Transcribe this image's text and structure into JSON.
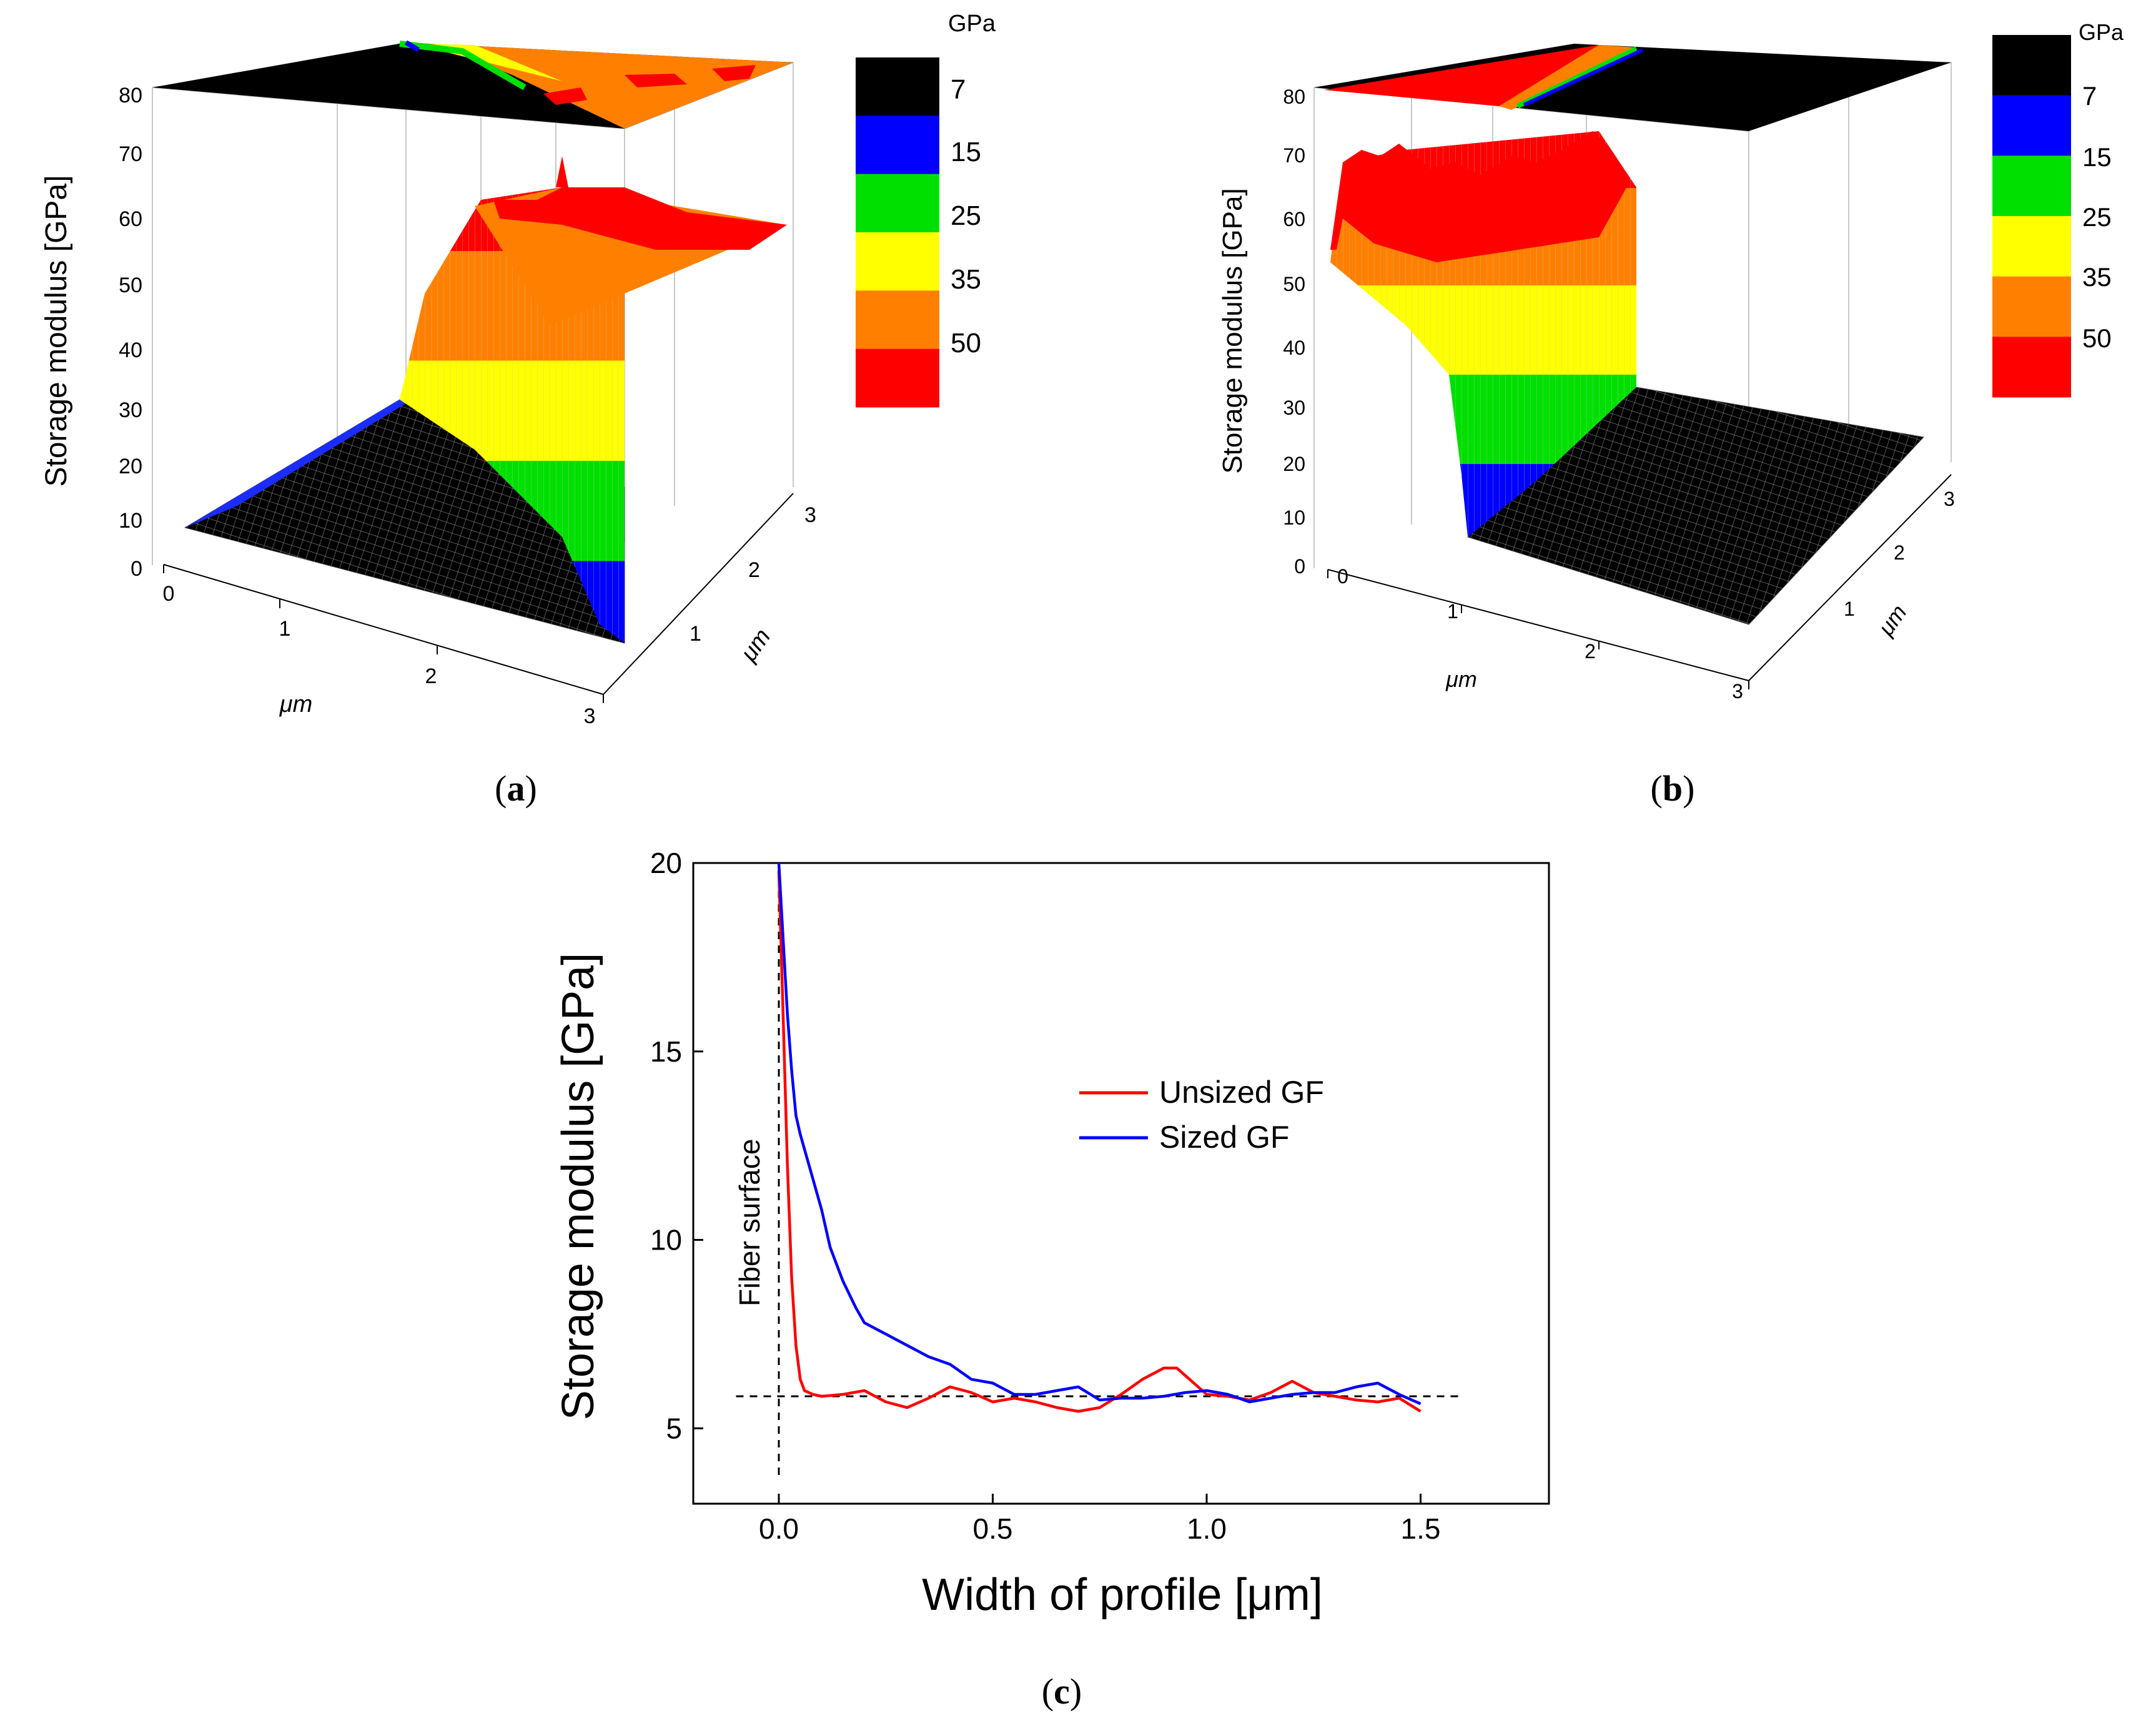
{
  "panels": {
    "a": {
      "label": "(a)",
      "letter": "a"
    },
    "b": {
      "label": "(b)",
      "letter": "b"
    },
    "c": {
      "label": "(c)",
      "letter": "c"
    }
  },
  "surface_common": {
    "zlabel": "Storage modulus [GPa]",
    "xlabel": "μm",
    "ylabel": "μm",
    "zticks": [
      "0",
      "10",
      "20",
      "30",
      "40",
      "50",
      "60",
      "70",
      "80"
    ],
    "xticks": [
      "0",
      "1",
      "2",
      "3"
    ],
    "yticks": [
      "1",
      "2",
      "3"
    ],
    "colorbar": {
      "unit": "GPa",
      "ticks": [
        "7",
        "15",
        "25",
        "35",
        "50"
      ],
      "colors": [
        "#000000",
        "#0000ff",
        "#00e000",
        "#ffff00",
        "#ff8000",
        "#ff0000"
      ]
    }
  },
  "chart_data": [
    {
      "type": "surface",
      "panel": "a",
      "zlabel": "Storage modulus [GPa]",
      "xlabel": "μm",
      "ylabel": "μm",
      "xlim": [
        0,
        3
      ],
      "ylim": [
        0,
        3
      ],
      "zlim": [
        0,
        80
      ],
      "profile_x": [
        0,
        0.5,
        1.0,
        1.5,
        2.0,
        2.5,
        3.0
      ],
      "profile_modulus_gpa": [
        7,
        6,
        6,
        8,
        45,
        55,
        58
      ]
    },
    {
      "type": "surface",
      "panel": "b",
      "zlabel": "Storage modulus [GPa]",
      "xlabel": "μm",
      "ylabel": "μm",
      "xlim": [
        0,
        3
      ],
      "ylim": [
        0,
        3
      ],
      "zlim": [
        0,
        80
      ],
      "profile_x": [
        0,
        0.5,
        1.0,
        1.5,
        2.0,
        2.5,
        3.0
      ],
      "profile_modulus_gpa": [
        58,
        65,
        12,
        6,
        6,
        6,
        6
      ]
    },
    {
      "type": "line",
      "panel": "c",
      "xlabel": "Width of profile [μm]",
      "ylabel": "Storage modulus [GPa]",
      "xlim": [
        -0.2,
        1.8
      ],
      "ylim": [
        3,
        20
      ],
      "xticks": [
        "0.0",
        "0.5",
        "1.0",
        "1.5"
      ],
      "xtick_values": [
        0,
        0.5,
        1.0,
        1.5
      ],
      "yticks": [
        "5",
        "10",
        "15",
        "20"
      ],
      "ytick_values": [
        5,
        10,
        15,
        20
      ],
      "annotation": "Fiber surface",
      "reference_lines": {
        "vertical_x": 0,
        "horizontal_y": 5.85,
        "horizontal_from": -0.1,
        "horizontal_to": 1.6
      },
      "series": [
        {
          "name": "Unsized GF",
          "color": "#ff0000",
          "x": [
            0.0,
            0.01,
            0.02,
            0.03,
            0.04,
            0.05,
            0.06,
            0.08,
            0.1,
            0.15,
            0.2,
            0.25,
            0.3,
            0.35,
            0.4,
            0.45,
            0.5,
            0.55,
            0.6,
            0.65,
            0.7,
            0.75,
            0.8,
            0.85,
            0.9,
            0.93,
            0.95,
            1.0,
            1.05,
            1.1,
            1.15,
            1.2,
            1.25,
            1.3,
            1.35,
            1.4,
            1.45,
            1.5
          ],
          "y": [
            19.8,
            16.0,
            12.0,
            9.0,
            7.2,
            6.3,
            6.0,
            5.9,
            5.85,
            5.9,
            6.0,
            5.7,
            5.55,
            5.8,
            6.1,
            5.95,
            5.7,
            5.8,
            5.7,
            5.55,
            5.45,
            5.55,
            5.9,
            6.3,
            6.6,
            6.6,
            6.4,
            5.9,
            5.85,
            5.75,
            5.95,
            6.25,
            5.95,
            5.85,
            5.75,
            5.7,
            5.8,
            5.45
          ]
        },
        {
          "name": "Sized GF",
          "color": "#0000ff",
          "x": [
            0.0,
            0.01,
            0.02,
            0.03,
            0.04,
            0.05,
            0.07,
            0.1,
            0.12,
            0.15,
            0.18,
            0.2,
            0.25,
            0.3,
            0.35,
            0.4,
            0.45,
            0.5,
            0.55,
            0.6,
            0.65,
            0.7,
            0.75,
            0.8,
            0.85,
            0.9,
            0.95,
            1.0,
            1.05,
            1.1,
            1.15,
            1.2,
            1.25,
            1.3,
            1.35,
            1.4,
            1.45,
            1.5
          ],
          "y": [
            20.0,
            18.0,
            16.0,
            14.5,
            13.3,
            12.8,
            12.0,
            10.8,
            9.8,
            8.9,
            8.2,
            7.8,
            7.5,
            7.2,
            6.9,
            6.7,
            6.3,
            6.2,
            5.9,
            5.9,
            6.0,
            6.1,
            5.75,
            5.8,
            5.8,
            5.85,
            5.95,
            6.0,
            5.9,
            5.7,
            5.8,
            5.9,
            5.95,
            5.95,
            6.1,
            6.2,
            5.9,
            5.65
          ]
        }
      ]
    }
  ]
}
